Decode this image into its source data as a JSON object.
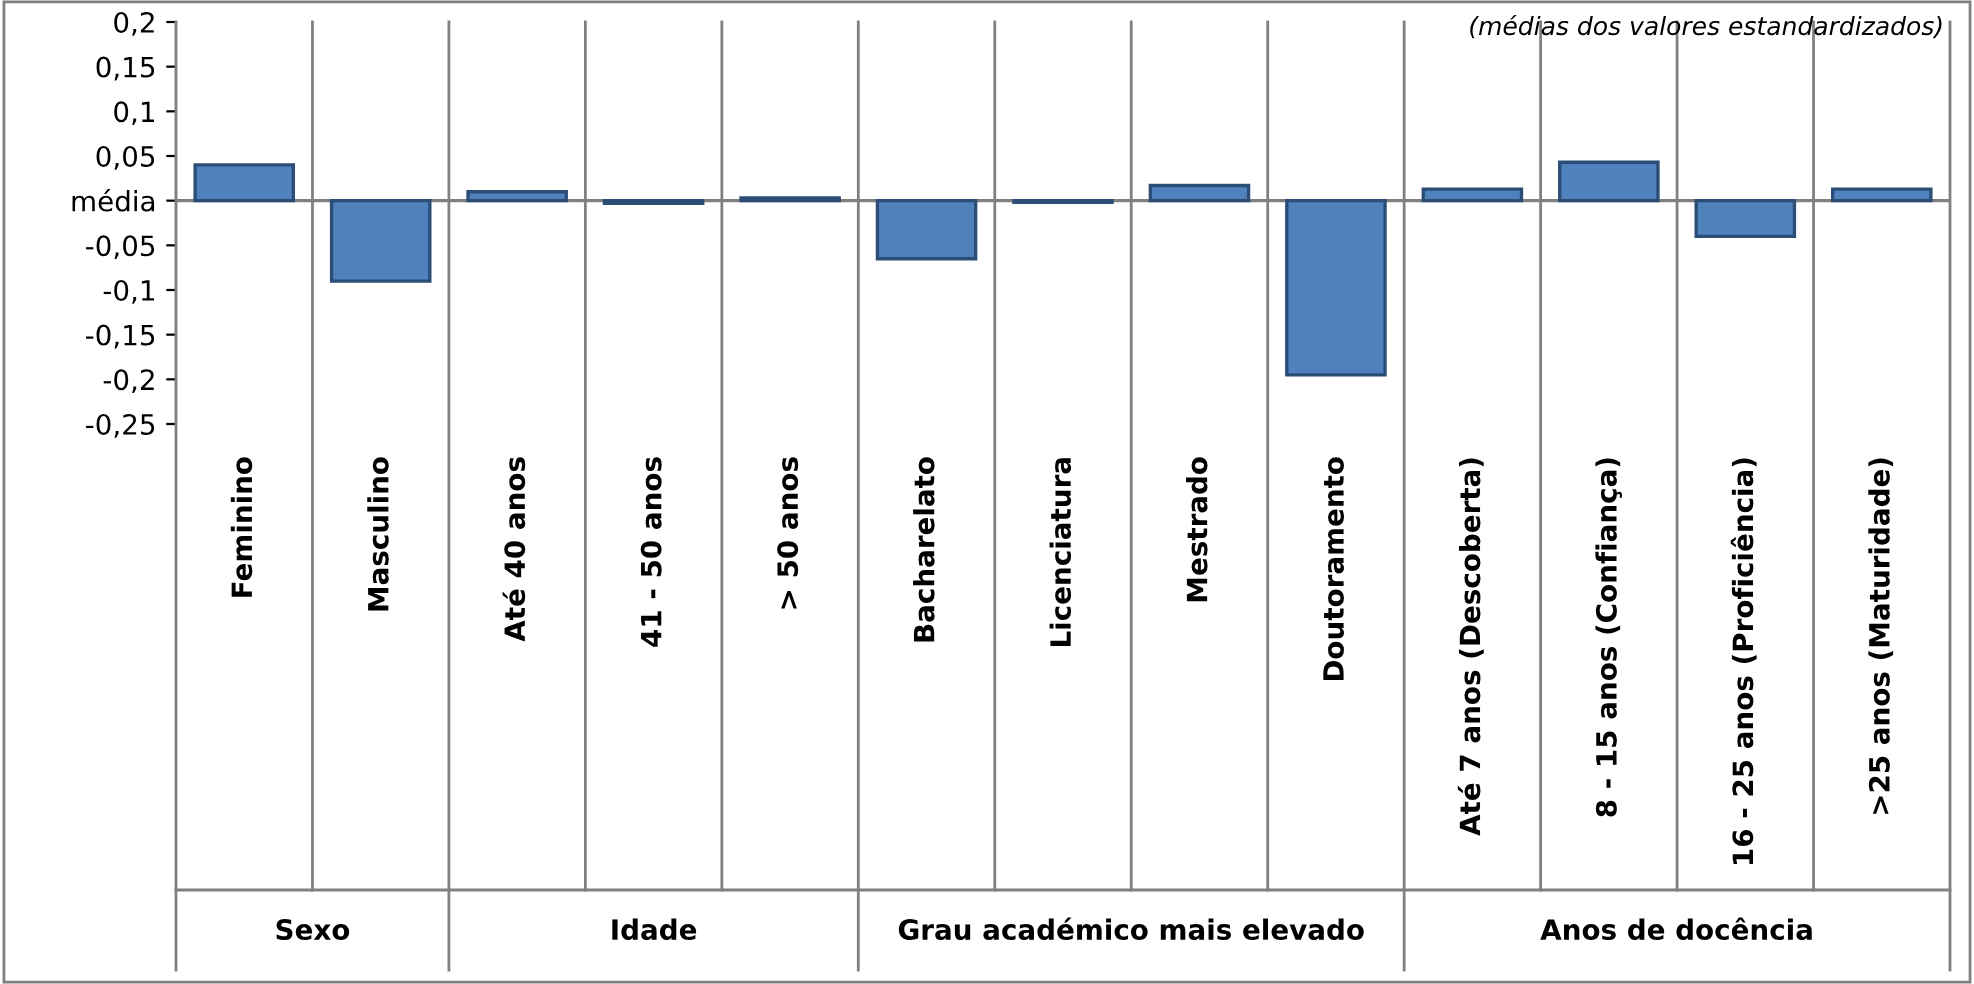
{
  "chart_data": {
    "type": "bar",
    "categories": [
      "Feminino",
      "Masculino",
      "Até 40 anos",
      "41 - 50 anos",
      "> 50 anos",
      "Bacharelato",
      "Licenciatura",
      "Mestrado",
      "Doutoramento",
      "Até 7 anos (Descoberta)",
      "8 - 15 anos (Confiança)",
      "16 - 25 anos (Proficiência)",
      ">25 anos (Maturidade)"
    ],
    "values": [
      0.04,
      -0.09,
      0.01,
      -0.003,
      0.003,
      -0.065,
      -0.002,
      0.017,
      -0.195,
      0.013,
      0.043,
      -0.04,
      0.013
    ],
    "color": "#4f81bd",
    "ylim": [
      -0.25,
      0.2
    ],
    "yticks": [
      {
        "value": 0.2,
        "label": "0,2"
      },
      {
        "value": 0.15,
        "label": "0,15"
      },
      {
        "value": 0.1,
        "label": "0,1"
      },
      {
        "value": 0.05,
        "label": "0,05"
      },
      {
        "value": 0,
        "label": "média"
      },
      {
        "value": -0.05,
        "label": "-0,05"
      },
      {
        "value": -0.1,
        "label": "-0,1"
      },
      {
        "value": -0.15,
        "label": "-0,15"
      },
      {
        "value": -0.2,
        "label": "-0,2"
      },
      {
        "value": -0.25,
        "label": "-0,25"
      }
    ],
    "annotations": [
      "(médias dos valores estandardizados)",
      "Sexo",
      "Idade",
      "Grau académico mais elevado",
      "Anos de docência"
    ],
    "grid": false,
    "legend": false
  }
}
